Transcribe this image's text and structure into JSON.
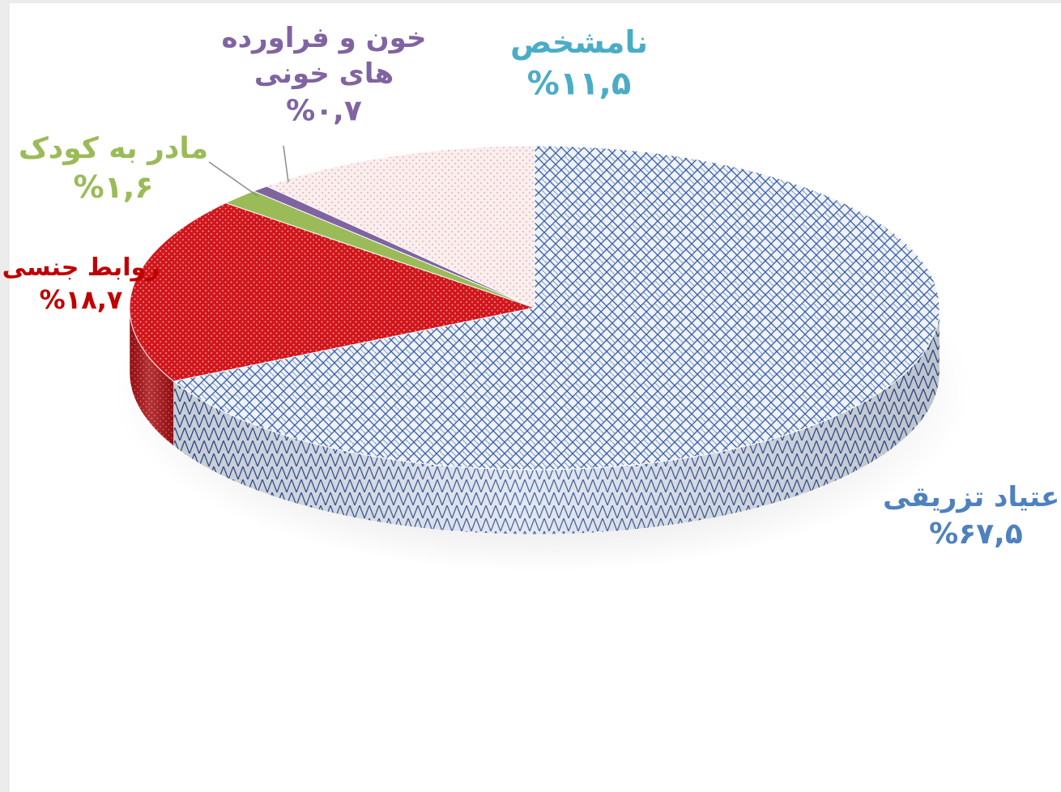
{
  "chart_data": {
    "type": "pie",
    "title": "",
    "slices": [
      {
        "label": "اعتیاد تزریقی",
        "value": 67.5,
        "value_text": "%۶۷,۵",
        "color": "#3f72b8",
        "pattern": "lattice"
      },
      {
        "label": "روابط جنسی",
        "value": 18.7,
        "value_text": "%۱۸,۷",
        "color": "#c0161b",
        "pattern": "dots-red"
      },
      {
        "label": "مادر به کودک",
        "value": 1.6,
        "value_text": "%۱,۶",
        "color": "#9bbb59",
        "pattern": "solid-green"
      },
      {
        "label_lines": [
          "خون و فراورده",
          "های خونی"
        ],
        "label": "خون و فراورده های خونی",
        "value": 0.7,
        "value_text": "%۰,۷",
        "color": "#8064a2",
        "pattern": "solid-purple"
      },
      {
        "label": "نامشخص",
        "value": 11.5,
        "value_text": "%۱۱,۵",
        "color": "#4bacc6",
        "pattern": "dots-pink"
      }
    ],
    "label_colors": {
      "اعتیاد تزریقی": "#4f81bd",
      "روابط جنسی": "#c00000",
      "مادر به کودک": "#9bbb59",
      "خون و فراورده های خونی": "#8064a2",
      "نامشخص": "#4bacc6"
    },
    "style": "3d-pie",
    "legend": "none"
  }
}
